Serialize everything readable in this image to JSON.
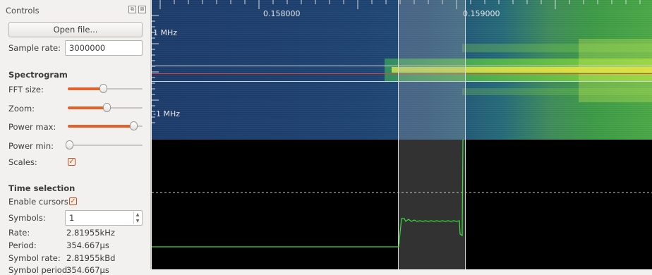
{
  "panel": {
    "title": "Controls",
    "float_icon": "⧉",
    "close_icon": "⊠",
    "open_file": "Open file...",
    "sample_rate_label": "Sample rate:",
    "sample_rate_value": "3000000",
    "spectrogram_heading": "Spectrogram",
    "fft_label": "FFT size:",
    "fft_level": 0.47,
    "zoom_label": "Zoom:",
    "zoom_level": 0.52,
    "power_max_label": "Power max:",
    "power_max_level": 0.88,
    "power_min_label": "Power min:",
    "power_min_level": 0.02,
    "scales_label": "Scales:",
    "scales_checked": true,
    "time_selection_heading": "Time selection",
    "enable_cursors_label": "Enable cursors:",
    "enable_cursors_checked": true,
    "symbols_label": "Symbols:",
    "symbols_value": "1",
    "rate_label": "Rate:",
    "rate_value": "2.81955kHz",
    "period_label": "Period:",
    "period_value": "354.667µs",
    "symbol_rate_label": "Symbol rate:",
    "symbol_rate_value": "2.81955kBd",
    "symbol_period_label": "Symbol period:",
    "symbol_period_value": "354.667µs"
  },
  "plot": {
    "time_label_1": "0.158000",
    "time_label_2": "0.159000",
    "freq_top": "1 MHz",
    "freq_bottom": "-1 MHz",
    "accent_slider": "#e1622b",
    "trace_color": "#3ddc3d",
    "centerline_color": "#e0473a"
  }
}
